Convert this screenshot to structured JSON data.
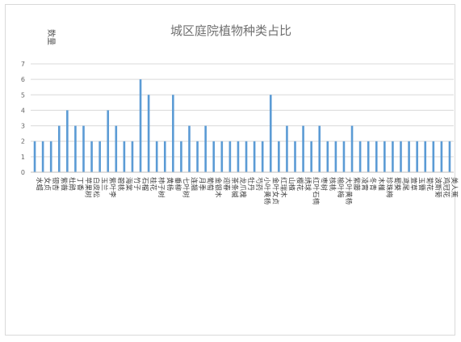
{
  "chart_data": {
    "type": "bar",
    "title": "城区庭院植物种类占比",
    "ylabel": "数量",
    "xlabel": "",
    "ylim": [
      0,
      7
    ],
    "yticks": [
      0,
      1,
      2,
      3,
      4,
      5,
      6,
      7
    ],
    "grid": true,
    "legend": "none",
    "bar_color": "#5b9bd5",
    "grid_color": "#d9d9d9",
    "categories": [
      "水蜡",
      "女贞",
      "银杏",
      "紫薇",
      "杜鹃",
      "丁香",
      "苹果树",
      "白皮松",
      "玉兰",
      "紫叶李",
      "碧桃",
      "海棠",
      "竹子",
      "石榴",
      "桂花",
      "柿子树",
      "黄杨",
      "垂柳",
      "七叶树",
      "连翘",
      "月季",
      "葡萄",
      "金银木",
      "迎春",
      "茶条槭",
      "龙爪槐",
      "牡丹",
      "芍药",
      "小叶黄杨",
      "金叶女贞",
      "红瑞木",
      "山楂",
      "樱花",
      "绣球",
      "红叶石楠",
      "枣树",
      "核桃",
      "榆叶梅",
      "大叶黄杨",
      "紫藤",
      "凌霄",
      "冬青",
      "木槿",
      "珍珠梅",
      "蜀葵",
      "鸢尾",
      "萱草",
      "玉簪",
      "菊花",
      "波斯菊",
      "鸡冠花",
      "美人蕉"
    ],
    "values": [
      2,
      2,
      2,
      3,
      4,
      3,
      3,
      2,
      2,
      4,
      3,
      2,
      2,
      6,
      5,
      2,
      2,
      5,
      2,
      3,
      2,
      3,
      2,
      2,
      2,
      2,
      2,
      2,
      2,
      5,
      2,
      3,
      2,
      3,
      2,
      3,
      2,
      2,
      2,
      3,
      2,
      2,
      2,
      2,
      2,
      2,
      2,
      2,
      2,
      2,
      2,
      2
    ]
  }
}
